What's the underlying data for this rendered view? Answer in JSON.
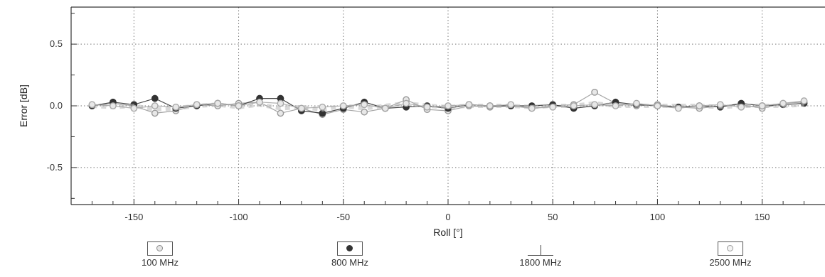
{
  "chart_data": {
    "type": "line",
    "xlabel": "Roll [°]",
    "ylabel": "Error [dB]",
    "xlim": [
      -180,
      180
    ],
    "ylim": [
      -0.8,
      0.8
    ],
    "x_ticks": [
      -150,
      -100,
      -50,
      0,
      50,
      100,
      150
    ],
    "y_ticks": [
      0.5,
      0.0,
      -0.5
    ],
    "y_tick_labels": [
      "0.5",
      "0.0",
      "-0.5"
    ],
    "grid": true,
    "legend_position": "bottom",
    "series": [
      {
        "name": "100 MHz",
        "color": "#9a9a9a",
        "marker": "open",
        "x": [
          -170,
          -160,
          -150,
          -140,
          -130,
          -120,
          -110,
          -100,
          -90,
          -80,
          -70,
          -60,
          -50,
          -40,
          -30,
          -20,
          -10,
          0,
          10,
          20,
          30,
          40,
          50,
          60,
          70,
          80,
          90,
          100,
          110,
          120,
          130,
          140,
          150,
          160,
          170
        ],
        "y": [
          0.0,
          0.02,
          0.0,
          -0.06,
          -0.04,
          0.01,
          0.0,
          0.02,
          0.03,
          -0.06,
          -0.02,
          -0.07,
          -0.03,
          -0.05,
          -0.02,
          0.05,
          -0.03,
          -0.04,
          0.0,
          -0.01,
          0.0,
          -0.02,
          0.0,
          0.01,
          0.11,
          0.02,
          0.0,
          0.01,
          -0.01,
          -0.02,
          0.0,
          0.01,
          -0.02,
          0.02,
          0.03
        ]
      },
      {
        "name": "800 MHz",
        "color": "#333333",
        "marker": "filled",
        "x": [
          -170,
          -160,
          -150,
          -140,
          -130,
          -120,
          -110,
          -100,
          -90,
          -80,
          -70,
          -60,
          -50,
          -40,
          -30,
          -20,
          -10,
          0,
          10,
          20,
          30,
          40,
          50,
          60,
          70,
          80,
          90,
          100,
          110,
          120,
          130,
          140,
          150,
          160,
          170
        ],
        "y": [
          0.0,
          0.03,
          0.01,
          0.06,
          -0.02,
          0.0,
          0.02,
          0.0,
          0.06,
          0.06,
          -0.04,
          -0.06,
          -0.02,
          0.03,
          -0.02,
          -0.01,
          0.0,
          -0.02,
          0.01,
          0.0,
          0.0,
          0.0,
          0.01,
          -0.02,
          0.0,
          0.03,
          0.01,
          0.0,
          -0.01,
          0.0,
          -0.01,
          0.02,
          0.0,
          0.01,
          0.02
        ]
      },
      {
        "name": "1800 MHz",
        "color": "#b8b8b8",
        "marker": "none",
        "x": [
          -170,
          -160,
          -150,
          -140,
          -130,
          -120,
          -110,
          -100,
          -90,
          -80,
          -70,
          -60,
          -50,
          -40,
          -30,
          -20,
          -10,
          0,
          10,
          20,
          30,
          40,
          50,
          60,
          70,
          80,
          90,
          100,
          110,
          120,
          130,
          140,
          150,
          160,
          170
        ],
        "y": [
          0.0,
          -0.01,
          0.0,
          -0.03,
          -0.02,
          0.0,
          0.01,
          -0.01,
          0.01,
          -0.02,
          -0.01,
          -0.03,
          0.0,
          -0.02,
          0.0,
          0.02,
          0.0,
          -0.01,
          0.0,
          0.0,
          0.0,
          -0.01,
          0.0,
          0.0,
          0.02,
          0.0,
          0.0,
          0.0,
          0.0,
          0.0,
          -0.01,
          0.0,
          0.0,
          0.0,
          0.01
        ]
      },
      {
        "name": "2500 MHz",
        "color": "#a8a8a8",
        "marker": "open",
        "x": [
          -170,
          -160,
          -150,
          -140,
          -130,
          -120,
          -110,
          -100,
          -90,
          -80,
          -70,
          -60,
          -50,
          -40,
          -30,
          -20,
          -10,
          0,
          10,
          20,
          30,
          40,
          50,
          60,
          70,
          80,
          90,
          100,
          110,
          120,
          130,
          140,
          150,
          160,
          170
        ],
        "y": [
          0.01,
          0.0,
          -0.02,
          0.0,
          -0.01,
          0.01,
          0.02,
          0.0,
          0.03,
          0.02,
          -0.02,
          -0.01,
          0.0,
          0.01,
          -0.02,
          0.02,
          -0.01,
          0.0,
          0.01,
          0.0,
          0.01,
          -0.02,
          -0.01,
          0.0,
          0.01,
          0.0,
          0.02,
          0.0,
          -0.02,
          0.0,
          0.01,
          -0.01,
          0.0,
          0.02,
          0.04
        ]
      }
    ]
  }
}
